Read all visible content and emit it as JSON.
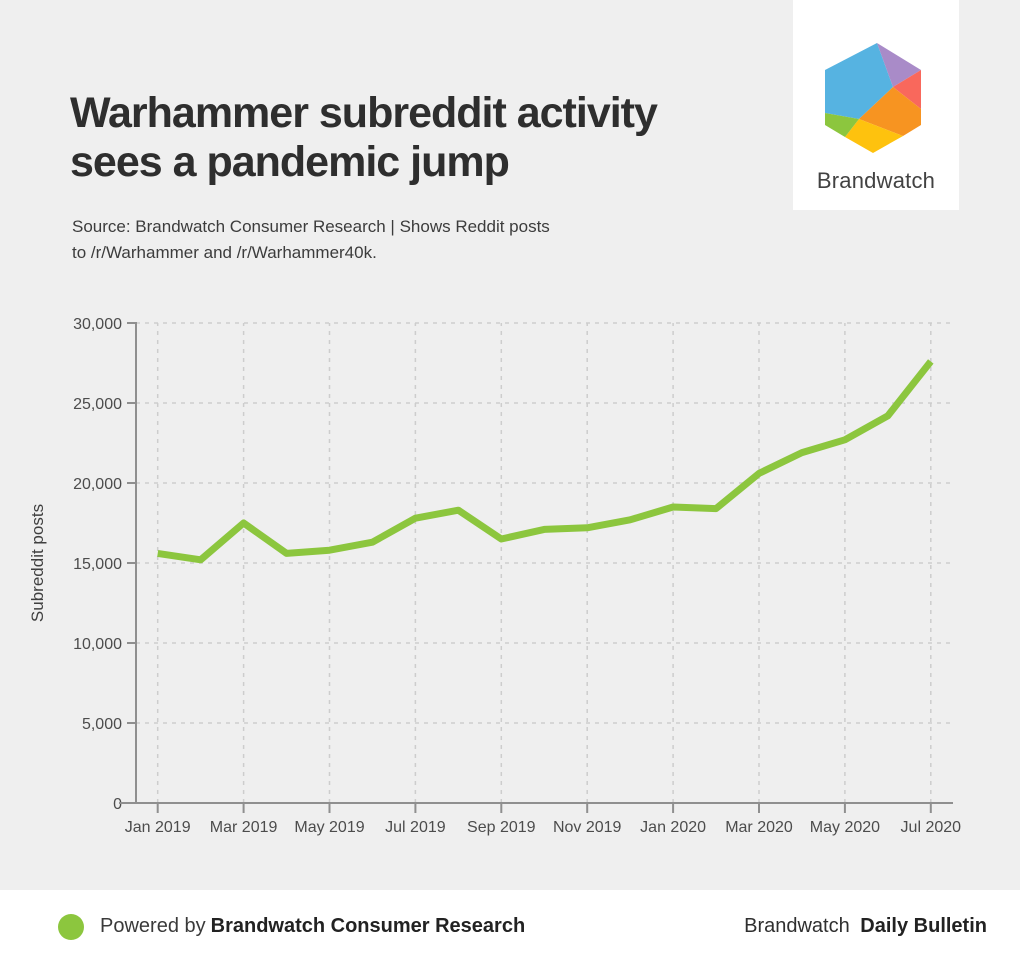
{
  "header": {
    "title": "Warhammer subreddit activity sees a pandemic jump",
    "source_line1": "Source: Brandwatch Consumer Research | Shows Reddit posts",
    "source_line2": "to /r/Warhammer and /r/Warhammer40k."
  },
  "logo_card": {
    "brand_name": "Brandwatch",
    "hex_colors": {
      "blue": "#56b3e1",
      "purple": "#a98bc8",
      "red": "#f9685c",
      "orange": "#f79421",
      "yellow": "#fec20e",
      "green": "#8cc63e"
    }
  },
  "chart_data": {
    "type": "line",
    "title": "Warhammer subreddit activity sees a pandemic jump",
    "xlabel": "",
    "ylabel": "Subreddit posts",
    "x": [
      "Jan 2019",
      "Feb 2019",
      "Mar 2019",
      "Apr 2019",
      "May 2019",
      "Jun 2019",
      "Jul 2019",
      "Aug 2019",
      "Sep 2019",
      "Oct 2019",
      "Nov 2019",
      "Dec 2019",
      "Jan 2020",
      "Feb 2020",
      "Mar 2020",
      "Apr 2020",
      "May 2020",
      "Jun 2020",
      "Jul 2020"
    ],
    "values": [
      15600,
      15200,
      17500,
      15600,
      15800,
      16300,
      17800,
      18300,
      16500,
      17100,
      17200,
      17700,
      18500,
      18400,
      20600,
      21900,
      22700,
      24200,
      27600
    ],
    "x_tick_labels": [
      "Jan 2019",
      "Mar 2019",
      "May 2019",
      "Jul 2019",
      "Sep 2019",
      "Nov 2019",
      "Jan 2020",
      "Mar 2020",
      "May 2020",
      "Jul 2020"
    ],
    "y_ticks": [
      0,
      5000,
      10000,
      15000,
      20000,
      25000,
      30000
    ],
    "ylim": [
      0,
      30000
    ],
    "grid": true,
    "legend": "none",
    "line_color": "#8cc63e"
  },
  "footer": {
    "powered_by_prefix": "Powered by",
    "powered_by_brand": "Brandwatch Consumer Research",
    "right_prefix": "Brandwatch",
    "right_suffix": "Daily Bulletin",
    "dot_color": "#8cc63e"
  }
}
